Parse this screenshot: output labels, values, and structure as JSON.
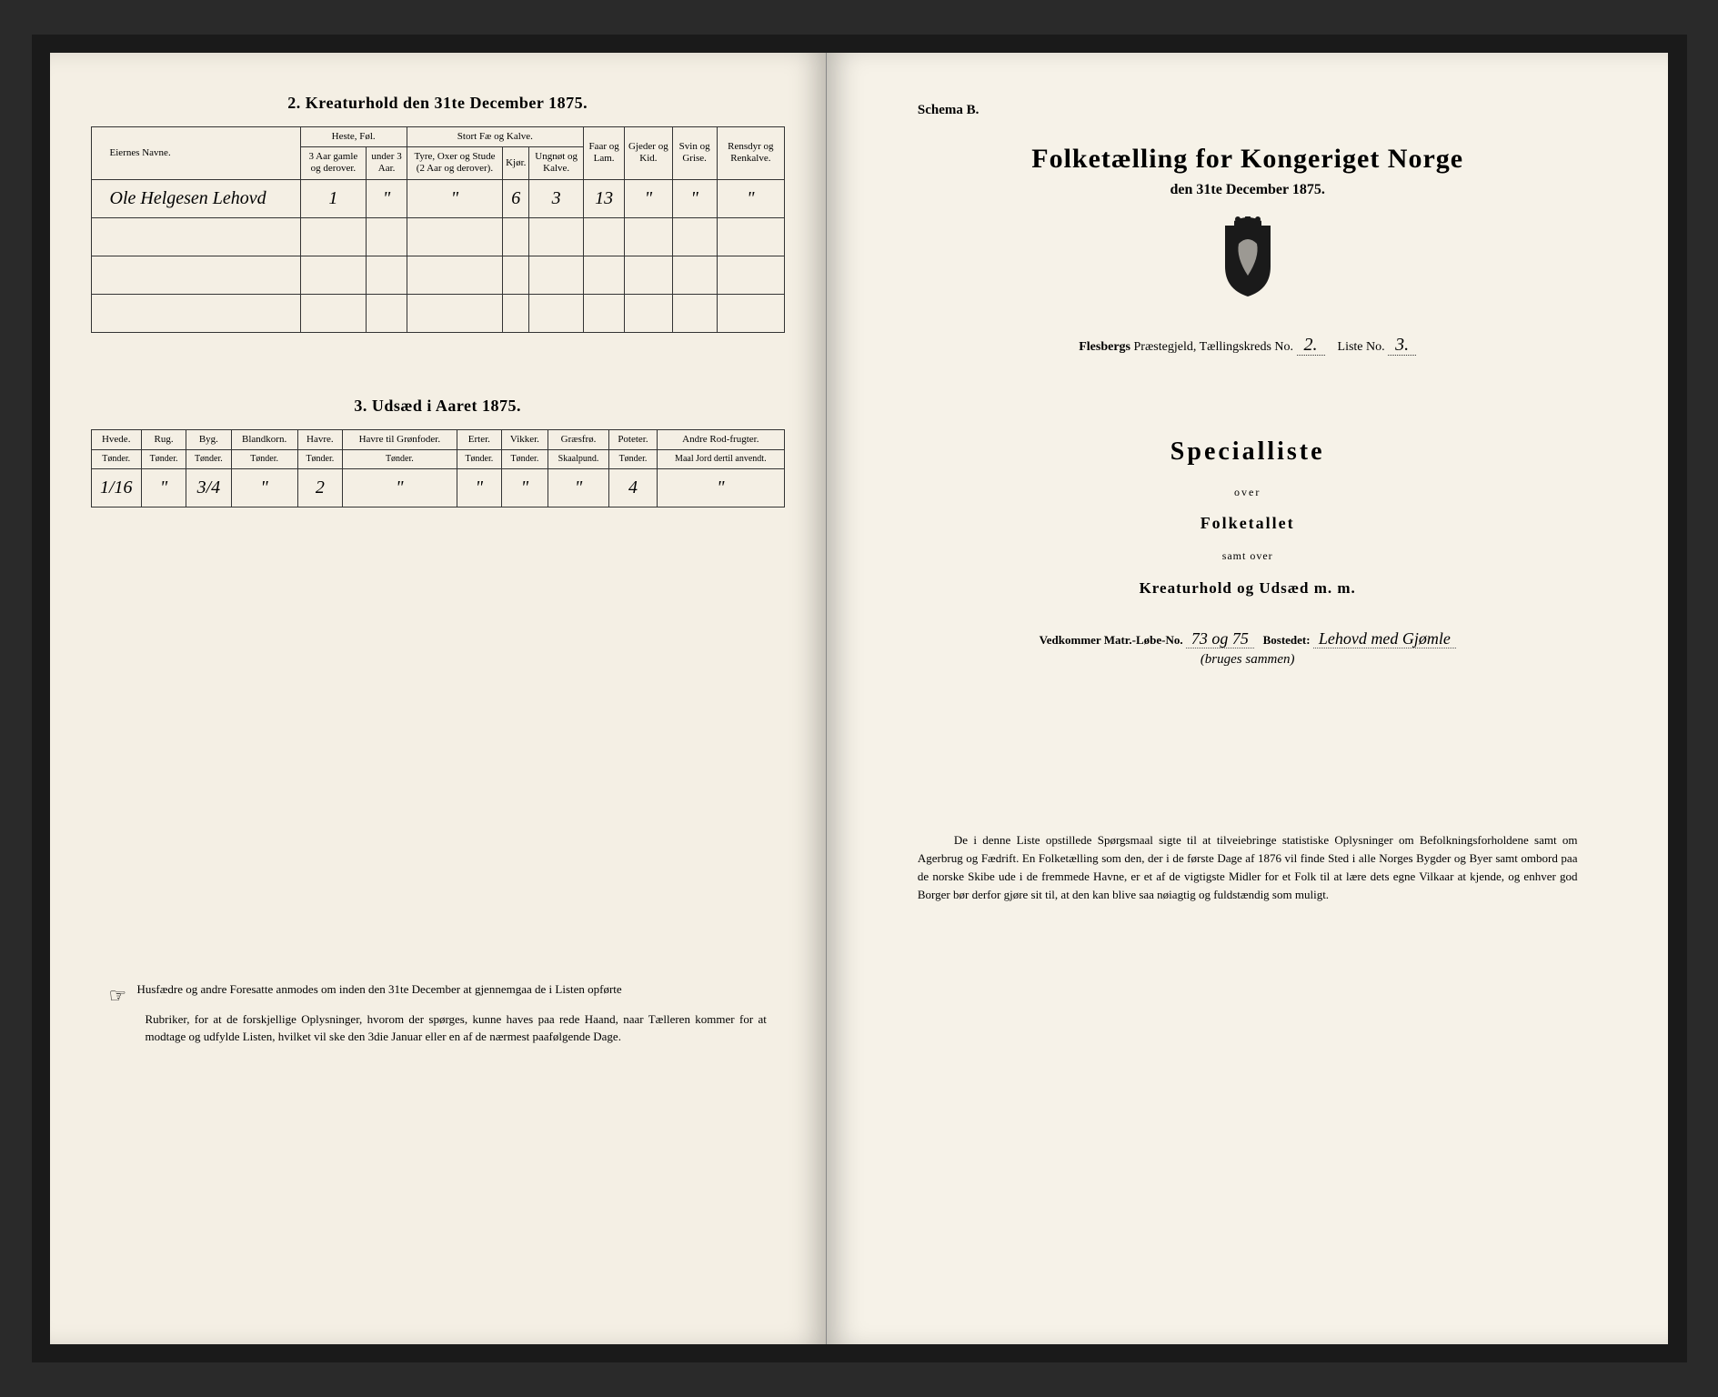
{
  "left": {
    "section2": {
      "title": "2.  Kreaturhold den 31te December 1875.",
      "headers": {
        "owner": "Eiernes Navne.",
        "heste": "Heste, Føl.",
        "heste_a": "3 Aar gamle og derover.",
        "heste_b": "under 3 Aar.",
        "stort": "Stort Fæ og Kalve.",
        "stort_a": "Tyre, Oxer og Stude (2 Aar og derover).",
        "stort_b": "Kjør.",
        "stort_c": "Ungnøt og Kalve.",
        "faar": "Faar og Lam.",
        "gjeder": "Gjeder og Kid.",
        "svin": "Svin og Grise.",
        "rens": "Rensdyr og Renkalve."
      },
      "rows": [
        {
          "owner": "Ole Helgesen Lehovd",
          "v": [
            "1",
            "\"",
            "\"",
            "6",
            "3",
            "13",
            "\"",
            "\"",
            "\""
          ]
        },
        {
          "owner": "",
          "v": [
            "",
            "",
            "",
            "",
            "",
            "",
            "",
            "",
            ""
          ]
        },
        {
          "owner": "",
          "v": [
            "",
            "",
            "",
            "",
            "",
            "",
            "",
            "",
            ""
          ]
        },
        {
          "owner": "",
          "v": [
            "",
            "",
            "",
            "",
            "",
            "",
            "",
            "",
            ""
          ]
        }
      ]
    },
    "section3": {
      "title": "3.  Udsæd i Aaret 1875.",
      "headers": [
        "Hvede.",
        "Rug.",
        "Byg.",
        "Blandkorn.",
        "Havre.",
        "Havre til Grønfoder.",
        "Erter.",
        "Vikker.",
        "Græsfrø.",
        "Poteter.",
        "Andre Rod-frugter."
      ],
      "units": [
        "Tønder.",
        "Tønder.",
        "Tønder.",
        "Tønder.",
        "Tønder.",
        "Tønder.",
        "Tønder.",
        "Tønder.",
        "Skaalpund.",
        "Tønder.",
        "Maal Jord dertil anvendt."
      ],
      "row": [
        "1/16",
        "\"",
        "3/4",
        "\"",
        "2",
        "\"",
        "\"",
        "\"",
        "\"",
        "4",
        "\""
      ]
    },
    "footnote": {
      "lead": "Husfædre og andre Foresatte anmodes om inden den 31te December at gjennemgaa de i Listen opførte",
      "rest": "Rubriker, for at de forskjellige Oplysninger, hvorom der spørges, kunne haves paa rede Haand, naar Tælleren kommer for at modtage og udfylde Listen, hvilket vil ske den 3die Januar eller en af de nærmest paafølgende Dage."
    }
  },
  "right": {
    "schema": "Schema B.",
    "main_title": "Folketælling for Kongeriget Norge",
    "sub_title": "den 31te December 1875.",
    "region": {
      "prefix": "Flesbergs",
      "label1": "Præstegjeld, Tællingskreds No.",
      "kreds": "2.",
      "label2": "Liste No.",
      "liste": "3."
    },
    "special": "Specialliste",
    "over": "over",
    "folketallet": "Folketallet",
    "samt": "samt over",
    "kreatur": "Kreaturhold og Udsæd m. m.",
    "vedkommer": {
      "label1": "Vedkommer Matr.-Løbe-No.",
      "matr": "73 og 75",
      "label2": "Bostedet:",
      "bosted": "Lehovd med Gjømle",
      "sub": "(bruges sammen)"
    },
    "bottom": "De i denne Liste opstillede Spørgsmaal sigte til at tilveiebringe statistiske Oplysninger om Befolkningsforholdene samt om Agerbrug og Fædrift.  En Folketælling som den, der i de første Dage af 1876 vil finde Sted i alle Norges Bygder og Byer samt ombord paa de norske Skibe ude i de fremmede Havne, er et af de vigtigste Midler for et Folk til at lære dets egne Vilkaar at kjende, og enhver god Borger bør derfor gjøre sit til, at den kan blive saa nøiagtig og fuldstændig som muligt."
  }
}
